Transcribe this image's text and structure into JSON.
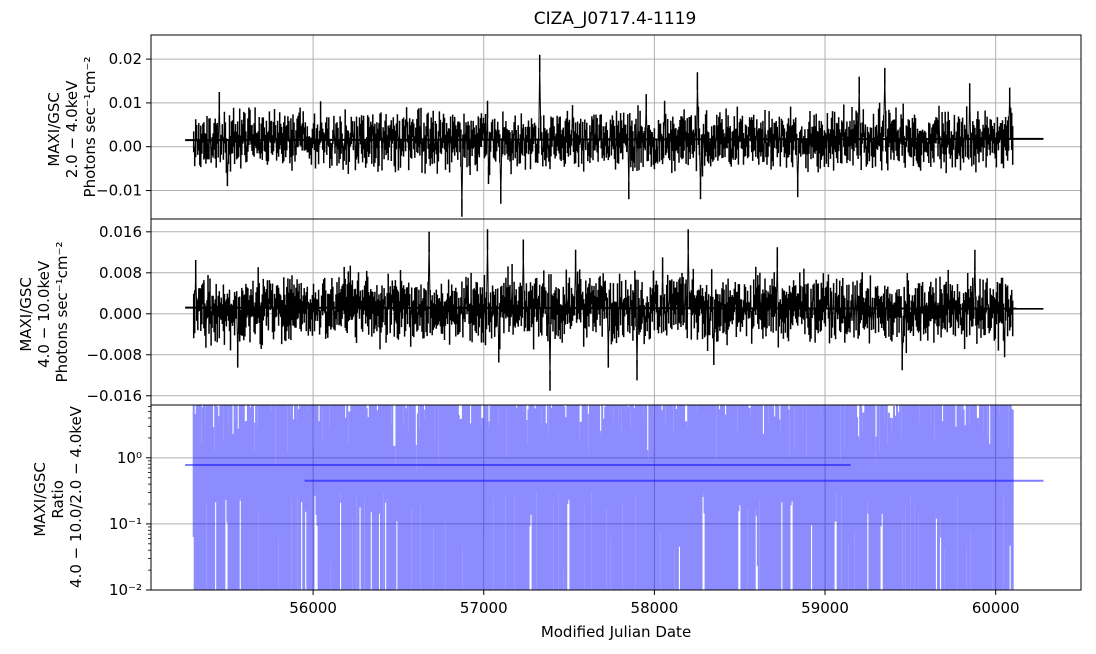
{
  "chart_data": {
    "type": "line",
    "title": "CIZA_J0717.4-1119",
    "xlabel": "Modified Julian Date",
    "xlim": [
      55050,
      60500
    ],
    "x_ticks": [
      {
        "value": 56000,
        "label": "56000"
      },
      {
        "value": 57000,
        "label": "57000"
      },
      {
        "value": 58000,
        "label": "58000"
      },
      {
        "value": 59000,
        "label": "59000"
      },
      {
        "value": 60000,
        "label": "60000"
      }
    ],
    "grid": true,
    "panels": [
      {
        "id": "soft",
        "ylabel": [
          "MAXI/GSC",
          "2.0 − 4.0keV",
          "Photons sec⁻¹cm⁻²"
        ],
        "yscale": "linear",
        "ylim": [
          -0.0165,
          0.0255
        ],
        "y_ticks": [
          {
            "value": 0.02,
            "label": "0.02"
          },
          {
            "value": 0.01,
            "label": "0.01"
          },
          {
            "value": 0.0,
            "label": "0.00"
          },
          {
            "value": -0.01,
            "label": "−0.01"
          }
        ],
        "color": "#000000",
        "data_range": [
          55300,
          60100
        ],
        "mean_line": {
          "x": [
            55250,
            60280
          ],
          "y": [
            0.0015,
            0.0018
          ]
        },
        "typical_range": [
          -0.004,
          0.007
        ],
        "spikes": [
          {
            "x": 55450,
            "y": 0.0125
          },
          {
            "x": 55500,
            "y": -0.009
          },
          {
            "x": 56300,
            "y": -0.0025
          },
          {
            "x": 56550,
            "y": 0.009
          },
          {
            "x": 56870,
            "y": -0.016
          },
          {
            "x": 57020,
            "y": 0.0105
          },
          {
            "x": 57030,
            "y": -0.0085
          },
          {
            "x": 57100,
            "y": -0.013
          },
          {
            "x": 57330,
            "y": 0.021
          },
          {
            "x": 57520,
            "y": 0.0095
          },
          {
            "x": 57850,
            "y": -0.012
          },
          {
            "x": 57950,
            "y": 0.012
          },
          {
            "x": 58060,
            "y": 0.0105
          },
          {
            "x": 58250,
            "y": 0.017
          },
          {
            "x": 58270,
            "y": -0.012
          },
          {
            "x": 58840,
            "y": -0.0115
          },
          {
            "x": 59200,
            "y": 0.016
          },
          {
            "x": 59350,
            "y": 0.018
          },
          {
            "x": 59850,
            "y": 0.0145
          },
          {
            "x": 60080,
            "y": 0.0135
          }
        ]
      },
      {
        "id": "hard",
        "ylabel": [
          "MAXI/GSC",
          "4.0 − 10.0keV",
          "Photons sec⁻¹cm⁻²"
        ],
        "yscale": "linear",
        "ylim": [
          -0.0178,
          0.0185
        ],
        "y_ticks": [
          {
            "value": 0.016,
            "label": "0.016"
          },
          {
            "value": 0.008,
            "label": "0.008"
          },
          {
            "value": 0.0,
            "label": "0.000"
          },
          {
            "value": -0.008,
            "label": "−0.008"
          },
          {
            "value": -0.016,
            "label": "−0.016"
          }
        ],
        "color": "#000000",
        "data_range": [
          55300,
          60100
        ],
        "mean_line": {
          "x": [
            55250,
            60280
          ],
          "y": [
            0.0012,
            0.001
          ]
        },
        "typical_range": [
          -0.004,
          0.006
        ],
        "spikes": [
          {
            "x": 55310,
            "y": 0.0105
          },
          {
            "x": 55560,
            "y": -0.0105
          },
          {
            "x": 56680,
            "y": 0.016
          },
          {
            "x": 57020,
            "y": 0.0165
          },
          {
            "x": 57090,
            "y": -0.0095
          },
          {
            "x": 57230,
            "y": 0.0145
          },
          {
            "x": 57390,
            "y": -0.015
          },
          {
            "x": 57540,
            "y": 0.0125
          },
          {
            "x": 57730,
            "y": -0.0105
          },
          {
            "x": 57900,
            "y": -0.013
          },
          {
            "x": 58050,
            "y": 0.011
          },
          {
            "x": 58200,
            "y": 0.0165
          },
          {
            "x": 58350,
            "y": -0.01
          },
          {
            "x": 58720,
            "y": 0.013
          },
          {
            "x": 59450,
            "y": -0.011
          },
          {
            "x": 59880,
            "y": 0.0125
          },
          {
            "x": 60050,
            "y": -0.0085
          }
        ]
      },
      {
        "id": "ratio",
        "ylabel": [
          "MAXI/GSC",
          "Ratio",
          "4.0 − 10.0/2.0 − 4.0keV"
        ],
        "yscale": "log",
        "ylim": [
          0.01,
          6.3
        ],
        "y_ticks": [
          {
            "value": 1.0,
            "label": "10⁰"
          },
          {
            "value": 0.1,
            "label": "10⁻¹"
          },
          {
            "value": 0.01,
            "label": "10⁻²"
          }
        ],
        "color": "#0000ff",
        "data_range": [
          55300,
          60100
        ],
        "mean_lines": [
          {
            "x": [
              55250,
              59150
            ],
            "y": [
              0.78,
              0.78
            ]
          },
          {
            "x": [
              55950,
              60280
            ],
            "y": [
              0.45,
              0.45
            ]
          }
        ]
      }
    ]
  }
}
